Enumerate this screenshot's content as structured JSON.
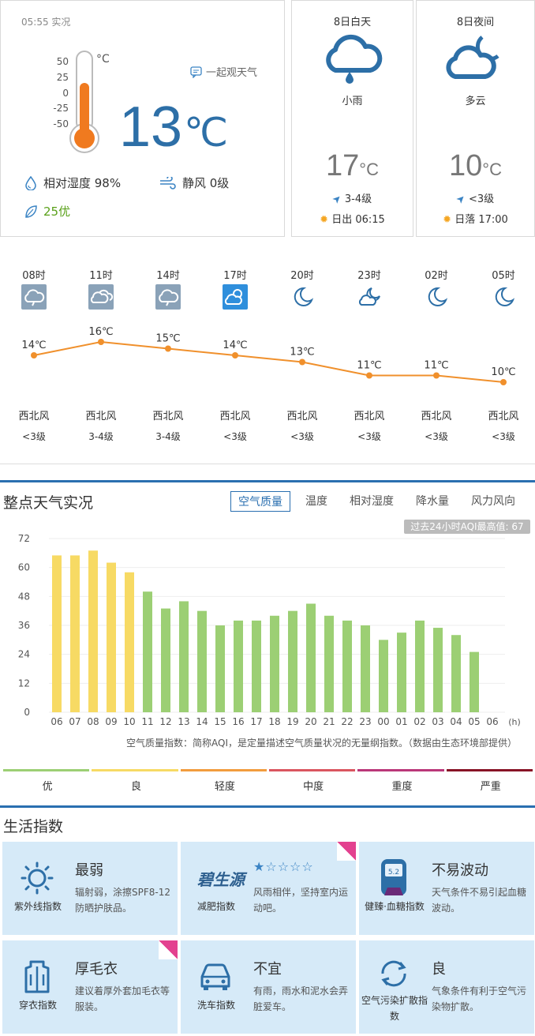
{
  "current": {
    "time": "05:55 实况",
    "scale": [
      "50",
      "25",
      "0",
      "-25",
      "-50"
    ],
    "scale_unit": "°C",
    "temp": "13",
    "temp_unit": "℃",
    "share_label": "一起观天气",
    "humidity": "相对湿度  98%",
    "wind": "静风  0级",
    "aqi": "25优"
  },
  "day": {
    "title": "8日白天",
    "desc": "小雨",
    "temp": "17",
    "temp_unit": "°C",
    "wind": "3-4级",
    "sun": "日出 06:15"
  },
  "night": {
    "title": "8日夜间",
    "desc": "多云",
    "temp": "10",
    "temp_unit": "°C",
    "wind": "<3级",
    "sun": "日落 17:00"
  },
  "hourly": [
    {
      "time": "08时",
      "icon": "rain-icon",
      "temp": "14℃",
      "t": 14,
      "dir": "西北风",
      "lvl": "<3级"
    },
    {
      "time": "11时",
      "icon": "overcast-icon",
      "temp": "16℃",
      "t": 16,
      "dir": "西北风",
      "lvl": "3-4级"
    },
    {
      "time": "14时",
      "icon": "rain-icon",
      "temp": "15℃",
      "t": 15,
      "dir": "西北风",
      "lvl": "3-4级"
    },
    {
      "time": "17时",
      "icon": "partly-cloudy-sun-icon",
      "temp": "14℃",
      "t": 14,
      "dir": "西北风",
      "lvl": "<3级"
    },
    {
      "time": "20时",
      "icon": "moon-icon",
      "temp": "13℃",
      "t": 13,
      "dir": "西北风",
      "lvl": "<3级"
    },
    {
      "time": "23时",
      "icon": "cloudy-night-icon",
      "temp": "11℃",
      "t": 11,
      "dir": "西北风",
      "lvl": "<3级"
    },
    {
      "time": "02时",
      "icon": "moon-icon",
      "temp": "11℃",
      "t": 11,
      "dir": "西北风",
      "lvl": "<3级"
    },
    {
      "time": "05时",
      "icon": "moon-icon",
      "temp": "10℃",
      "t": 10,
      "dir": "西北风",
      "lvl": "<3级"
    }
  ],
  "obs": {
    "title": "整点天气实况",
    "tabs": [
      "空气质量",
      "温度",
      "相对湿度",
      "降水量",
      "风力风向"
    ],
    "aqi_max": "过去24小时AQI最高值: 67",
    "note": "空气质量指数：简称AQI，是定量描述空气质量状况的无量纲指数。（数据由生态环境部提供）",
    "legend": [
      {
        "label": "优",
        "color": "#9ccf74"
      },
      {
        "label": "良",
        "color": "#f7da64"
      },
      {
        "label": "轻度",
        "color": "#f29c3e"
      },
      {
        "label": "中度",
        "color": "#da555f"
      },
      {
        "label": "重度",
        "color": "#ba3779"
      },
      {
        "label": "严重",
        "color": "#881326"
      }
    ]
  },
  "chart_data": {
    "type": "bar",
    "categories": [
      "06",
      "07",
      "08",
      "09",
      "10",
      "11",
      "12",
      "13",
      "14",
      "15",
      "16",
      "17",
      "18",
      "19",
      "20",
      "21",
      "22",
      "23",
      "00",
      "01",
      "02",
      "03",
      "04",
      "05",
      "06"
    ],
    "values": [
      65,
      65,
      67,
      62,
      58,
      50,
      43,
      46,
      42,
      36,
      38,
      38,
      40,
      42,
      45,
      40,
      38,
      36,
      30,
      33,
      38,
      35,
      32,
      25,
      null
    ],
    "xlabel": "(h)",
    "ylabel": "",
    "ylim": [
      0,
      72
    ],
    "yticks": [
      0,
      12,
      24,
      36,
      48,
      60,
      72
    ],
    "colors": {
      "good": "#9ccf74",
      "moderate": "#f7da64"
    },
    "grid": true
  },
  "life": {
    "title": "生活指数",
    "items": [
      {
        "name": "紫外线指数",
        "icon": "sun-icon",
        "value": "最弱",
        "desc": "辐射弱，涂擦SPF8-12防晒护肤品。"
      },
      {
        "name": "减肥指数",
        "icon": "brand-logo-icon",
        "logo": "碧生源",
        "value": "",
        "stars": "★☆☆☆☆",
        "desc": "风雨相伴，坚持室内运动吧。"
      },
      {
        "name": "健臻·血糖指数",
        "icon": "glucose-meter-icon",
        "meter": "5.2",
        "value": "不易波动",
        "desc": "天气条件不易引起血糖波动。"
      },
      {
        "name": "穿衣指数",
        "icon": "coat-icon",
        "value": "厚毛衣",
        "desc": "建议着厚外套加毛衣等服装。"
      },
      {
        "name": "洗车指数",
        "icon": "car-icon",
        "value": "不宜",
        "desc": "有雨，雨水和泥水会弄脏爱车。"
      },
      {
        "name": "空气污染扩散指数",
        "icon": "recycle-icon",
        "value": "良",
        "desc": "气象条件有利于空气污染物扩散。"
      }
    ]
  }
}
